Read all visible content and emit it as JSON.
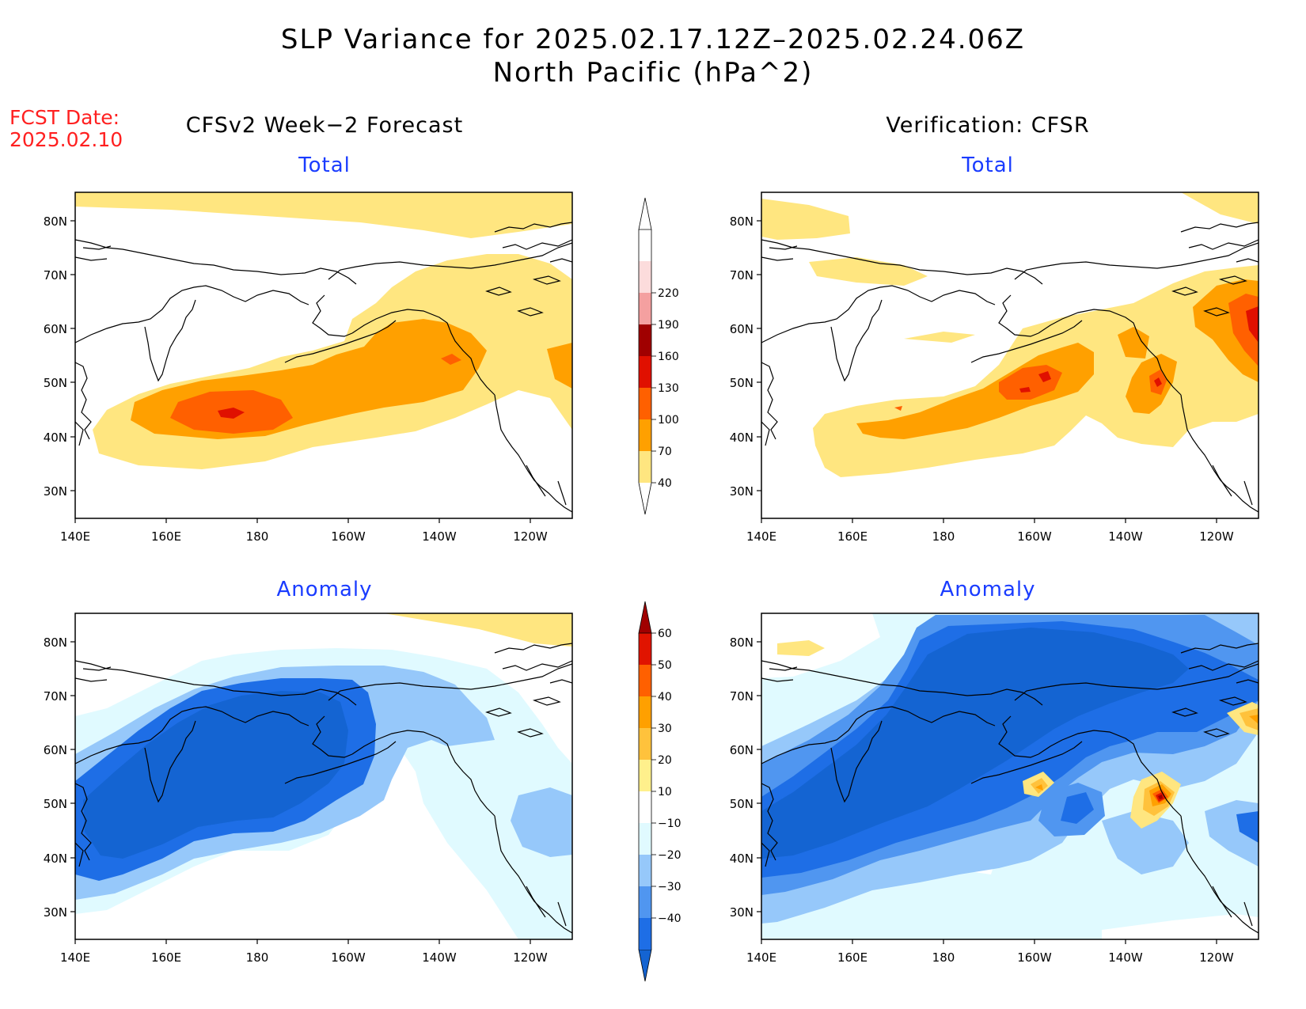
{
  "header": {
    "title_line1": "SLP Variance for 2025.02.17.12Z–2025.02.24.06Z",
    "title_line2": "North Pacific (hPa^2)",
    "fcst_label": "FCST Date:",
    "fcst_date": "2025.02.10"
  },
  "columns": {
    "left_title": "CFSv2 Week−2 Forecast",
    "right_title": "Verification: CFSR"
  },
  "panels": [
    {
      "id": "fcst-total",
      "label": "Total"
    },
    {
      "id": "verif-total",
      "label": "Total"
    },
    {
      "id": "fcst-anom",
      "label": "Anomaly"
    },
    {
      "id": "verif-anom",
      "label": "Anomaly"
    }
  ],
  "axes": {
    "lon_labels": [
      "140E",
      "160E",
      "180",
      "160W",
      "140W",
      "120W"
    ],
    "lat_labels": [
      "80N",
      "70N",
      "60N",
      "50N",
      "40N",
      "30N"
    ]
  },
  "colorbars": {
    "total": {
      "levels": [
        "40",
        "70",
        "100",
        "130",
        "160",
        "190",
        "220"
      ],
      "colors": [
        "#ffe680",
        "#ffa000",
        "#ff6000",
        "#e01000",
        "#a00000",
        "#f4a0a0",
        "#fcdcdc",
        "#ffffff"
      ]
    },
    "anomaly": {
      "levels": [
        "−40",
        "−30",
        "−20",
        "−10",
        "10",
        "20",
        "30",
        "40",
        "50",
        "60"
      ],
      "colors": [
        "#1464d2",
        "#1e6ee6",
        "#5096f0",
        "#96c8fa",
        "#e0faff",
        "#ffffff",
        "#fff08c",
        "#ffc23c",
        "#ffa000",
        "#ff6000",
        "#e01400",
        "#a00000"
      ]
    }
  }
}
